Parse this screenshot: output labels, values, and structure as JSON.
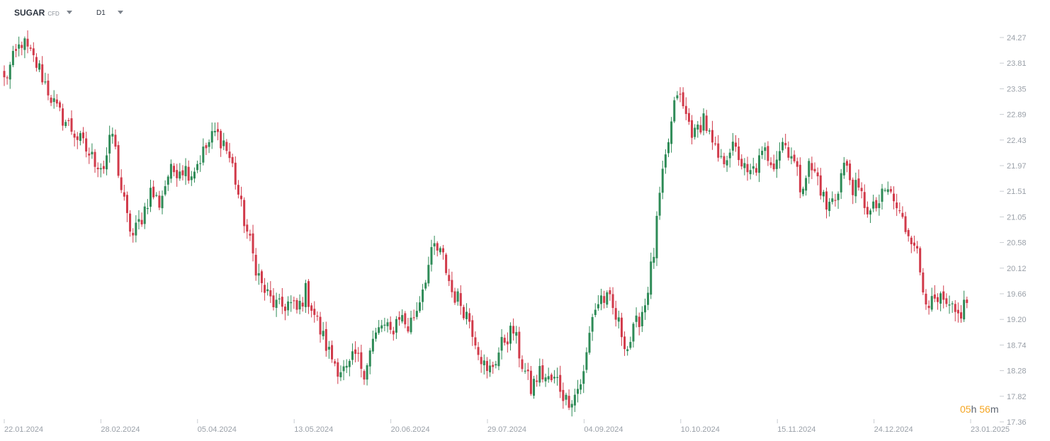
{
  "toolbar": {
    "instrument": "SUGAR",
    "instrument_type": "CFD",
    "interval": "D1"
  },
  "countdown": {
    "hours": "05",
    "hours_unit": "h",
    "minutes": "56",
    "minutes_unit": "m"
  },
  "colors": {
    "up": "#2e8b57",
    "down": "#d13a4a",
    "axis_text": "#9aa0a8",
    "grid_tick": "#c9cdd2"
  },
  "chart_data": {
    "type": "candlestick",
    "y_axis": {
      "ticks": [
        "24.27",
        "23.81",
        "23.35",
        "22.89",
        "22.43",
        "21.97",
        "21.51",
        "21.05",
        "20.58",
        "20.12",
        "19.66",
        "19.20",
        "18.74",
        "18.28",
        "17.82",
        "17.36"
      ],
      "range": [
        17.36,
        24.27
      ]
    },
    "x_axis": {
      "ticks": [
        "22.01.2024",
        "28.02.2024",
        "05.04.2024",
        "13.05.2024",
        "20.06.2024",
        "29.07.2024",
        "04.09.2024",
        "10.10.2024",
        "15.11.2024",
        "24.12.2024",
        "23.01.2025"
      ]
    },
    "close_path": [
      [
        0,
        23.5
      ],
      [
        6,
        24.2
      ],
      [
        12,
        23.7
      ],
      [
        18,
        22.95
      ],
      [
        22,
        22.7
      ],
      [
        26,
        22.4
      ],
      [
        30,
        22.1
      ],
      [
        34,
        21.95
      ],
      [
        37,
        22.55
      ],
      [
        40,
        21.55
      ],
      [
        42,
        21.0
      ],
      [
        44,
        20.7
      ],
      [
        47,
        21.05
      ],
      [
        50,
        21.5
      ],
      [
        53,
        21.3
      ],
      [
        56,
        21.8
      ],
      [
        60,
        21.95
      ],
      [
        64,
        21.85
      ],
      [
        68,
        22.2
      ],
      [
        72,
        22.55
      ],
      [
        75,
        22.4
      ],
      [
        78,
        21.95
      ],
      [
        81,
        21.2
      ],
      [
        85,
        20.35
      ],
      [
        88,
        19.8
      ],
      [
        91,
        19.55
      ],
      [
        94,
        19.4
      ],
      [
        97,
        19.5
      ],
      [
        100,
        19.35
      ],
      [
        103,
        19.7
      ],
      [
        105,
        19.45
      ],
      [
        108,
        19.0
      ],
      [
        111,
        18.6
      ],
      [
        114,
        18.35
      ],
      [
        117,
        18.25
      ],
      [
        120,
        18.55
      ],
      [
        123,
        18.3
      ],
      [
        126,
        18.8
      ],
      [
        129,
        19.1
      ],
      [
        132,
        18.95
      ],
      [
        135,
        19.3
      ],
      [
        138,
        19.05
      ],
      [
        141,
        19.4
      ],
      [
        144,
        20.0
      ],
      [
        147,
        20.5
      ],
      [
        150,
        20.3
      ],
      [
        153,
        19.7
      ],
      [
        156,
        19.5
      ],
      [
        159,
        19.2
      ],
      [
        162,
        18.7
      ],
      [
        165,
        18.2
      ],
      [
        168,
        18.5
      ],
      [
        171,
        18.85
      ],
      [
        174,
        19.0
      ],
      [
        177,
        18.4
      ],
      [
        180,
        17.95
      ],
      [
        183,
        18.25
      ],
      [
        186,
        18.1
      ],
      [
        189,
        18.1
      ],
      [
        192,
        17.75
      ],
      [
        195,
        17.85
      ],
      [
        198,
        18.2
      ],
      [
        201,
        19.3
      ],
      [
        204,
        19.6
      ],
      [
        207,
        19.5
      ],
      [
        210,
        19.1
      ],
      [
        213,
        18.7
      ],
      [
        216,
        19.1
      ],
      [
        219,
        19.5
      ],
      [
        222,
        20.4
      ],
      [
        224,
        21.4
      ],
      [
        227,
        22.4
      ],
      [
        230,
        23.3
      ],
      [
        233,
        22.85
      ],
      [
        236,
        22.5
      ],
      [
        239,
        22.85
      ],
      [
        242,
        22.3
      ],
      [
        245,
        22.0
      ],
      [
        248,
        22.3
      ],
      [
        251,
        22.15
      ],
      [
        254,
        21.75
      ],
      [
        257,
        21.95
      ],
      [
        260,
        22.2
      ],
      [
        263,
        22.05
      ],
      [
        266,
        22.4
      ],
      [
        269,
        22.2
      ],
      [
        272,
        21.6
      ],
      [
        275,
        21.95
      ],
      [
        278,
        21.75
      ],
      [
        281,
        21.2
      ],
      [
        284,
        21.4
      ],
      [
        287,
        22.0
      ],
      [
        290,
        21.6
      ],
      [
        293,
        21.4
      ],
      [
        296,
        21.1
      ],
      [
        299,
        21.3
      ],
      [
        302,
        21.55
      ],
      [
        305,
        21.2
      ],
      [
        308,
        20.85
      ],
      [
        311,
        20.65
      ],
      [
        314,
        19.75
      ],
      [
        317,
        19.45
      ],
      [
        320,
        19.5
      ],
      [
        323,
        19.35
      ],
      [
        326,
        19.25
      ],
      [
        329,
        19.55
      ]
    ],
    "last_index": 329
  }
}
